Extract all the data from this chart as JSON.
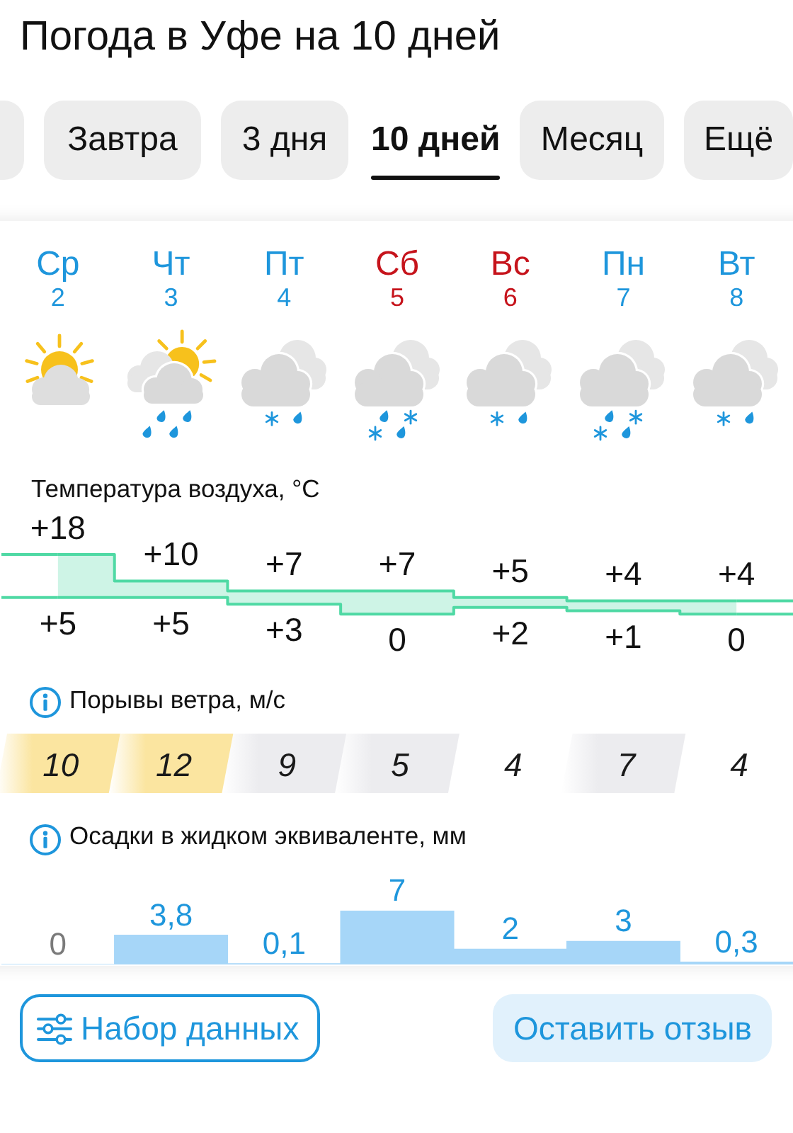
{
  "chart_data": [
    {
      "type": "other",
      "title": "Погода в Уфе на 10 дней",
      "annotations": [
        "Завтра",
        "3 дня",
        "10 дней",
        "Месяц",
        "Ещё"
      ]
    },
    {
      "type": "step",
      "title": "Температура воздуха, °C",
      "categories": [
        "Ср\n2",
        "Чт\n3",
        "Пт\n4",
        "Сб\n5",
        "Вс\n6",
        "Пн\n7",
        "Вт\n8"
      ],
      "tick_labels": "x",
      "series": [
        {
          "color": "#4fd9a4",
          "values": [
            18,
            10,
            7,
            7,
            5,
            4,
            4
          ],
          "value_labels": [
            "+18",
            "+10",
            "+7",
            "+7",
            "+5",
            "+4",
            "+4"
          ],
          "lower": [
            5,
            5,
            3,
            0,
            2,
            1,
            0
          ],
          "upper": [
            18,
            10,
            7,
            7,
            5,
            4,
            4
          ]
        },
        {
          "color": "#4fd9a4",
          "values": [
            5,
            5,
            3,
            0,
            2,
            1,
            0
          ],
          "value_labels": [
            "+5",
            "+5",
            "+3",
            "0",
            "+2",
            "+1",
            "0"
          ]
        }
      ]
    },
    {
      "type": "other",
      "title": "Порывы ветра, м/с",
      "categories": [
        null,
        null,
        null,
        null,
        null,
        null,
        null
      ],
      "values": [
        10,
        12,
        9,
        5,
        4,
        7,
        4
      ],
      "data_labels": true
    },
    {
      "type": "bar",
      "title": "Осадки в жидком эквиваленте, мм",
      "categories": [
        null,
        null,
        null,
        null,
        null,
        null,
        null
      ],
      "values": [
        0,
        3.8,
        0.1,
        7,
        2,
        3,
        0.3
      ],
      "value_labels": [
        "0",
        "3,8",
        "0,1",
        "7",
        "2",
        "3",
        "0,3"
      ],
      "color": "#a6d6f8",
      "tick_labels": false
    },
    {
      "type": "other",
      "annotations": [
        "Набор данных",
        "Оставить отзыв"
      ]
    }
  ]
}
